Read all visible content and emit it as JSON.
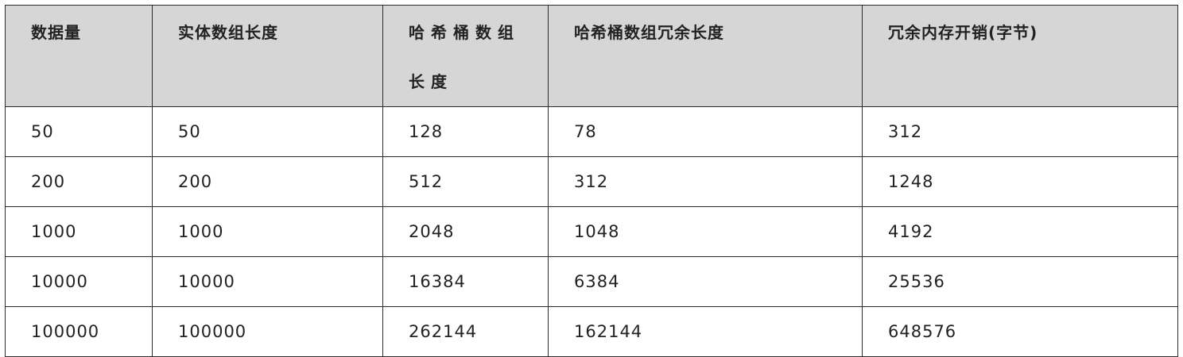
{
  "table": {
    "headers": [
      "数据量",
      "实体数组长度",
      "哈希桶数组长度",
      "哈希桶数组冗余长度",
      "冗余内存开销(字节)"
    ],
    "rows": [
      [
        "50",
        "50",
        "128",
        "78",
        "312"
      ],
      [
        "200",
        "200",
        "512",
        "312",
        "1248"
      ],
      [
        "1000",
        "1000",
        "2048",
        "1048",
        "4192"
      ],
      [
        "10000",
        "10000",
        "16384",
        "6384",
        "25536"
      ],
      [
        "100000",
        "100000",
        "262144",
        "162144",
        "648576"
      ]
    ]
  },
  "colors": {
    "header_background": "#d6d6d6",
    "border": "#2b2b2b",
    "text": "#222222"
  }
}
